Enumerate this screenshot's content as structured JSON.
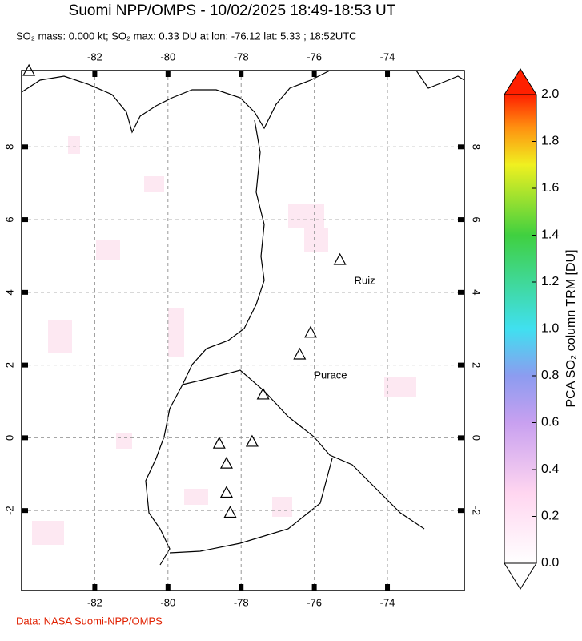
{
  "chart_data": {
    "type": "map",
    "title": "Suomi NPP/OMPS - 10/02/2025 18:49-18:53 UT",
    "subtitle": "SO₂ mass: 0.000 kt; SO₂ max: 0.33 DU at lon: -76.12 lat: 5.33 ; 18:52UTC",
    "xlim": [
      -84,
      -71.9
    ],
    "ylim": [
      -4.2,
      10.1
    ],
    "xticks": [
      -82,
      -80,
      -78,
      -76,
      -74
    ],
    "yticks": [
      -2,
      0,
      2,
      4,
      6,
      8
    ],
    "grid": true,
    "volcanoes": [
      {
        "lon": -83.8,
        "lat": 10.1
      },
      {
        "lon": -75.3,
        "lat": 4.9,
        "label": "Ruiz"
      },
      {
        "lon": -76.1,
        "lat": 2.9
      },
      {
        "lon": -76.4,
        "lat": 2.3,
        "label": "Purace"
      },
      {
        "lon": -77.4,
        "lat": 1.2
      },
      {
        "lon": -77.7,
        "lat": -0.1
      },
      {
        "lon": -78.6,
        "lat": -0.15
      },
      {
        "lon": -78.4,
        "lat": -0.7
      },
      {
        "lon": -78.4,
        "lat": -1.5
      },
      {
        "lon": -78.3,
        "lat": -2.05
      }
    ],
    "colorbar": {
      "label": "PCA SO₂ column TRM [DU]",
      "lim": [
        0,
        2
      ],
      "ticks": [
        {
          "value": 0,
          "label": "0.0"
        },
        0.2,
        0.4,
        0.6,
        0.8,
        {
          "value": 1,
          "label": "1.0"
        },
        1.2,
        1.4,
        1.6,
        1.8,
        {
          "value": 2,
          "label": "2.0"
        }
      ]
    },
    "credit": "Data: NASA Suomi-NPP/OMPS"
  }
}
